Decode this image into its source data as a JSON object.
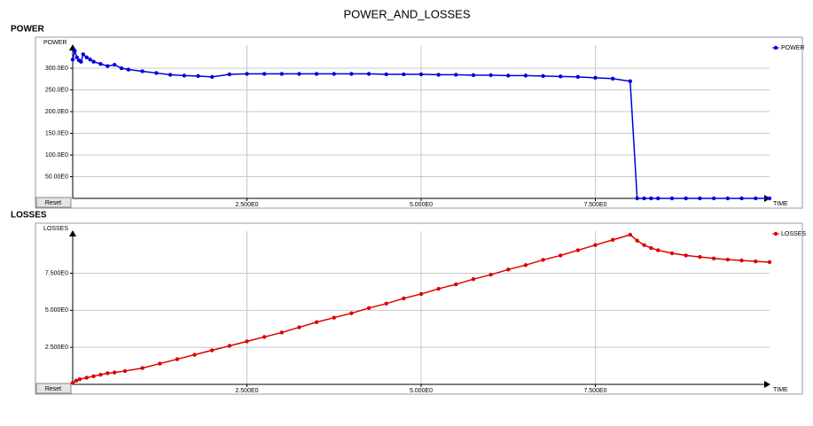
{
  "title": "POWER_AND_LOSSES",
  "chart_data": [
    {
      "type": "line",
      "panel_label": "POWER",
      "ylabel": "POWER",
      "xlabel": "TIME",
      "reset_button": "Reset",
      "x": [
        0,
        0.03,
        0.06,
        0.09,
        0.12,
        0.15,
        0.2,
        0.25,
        0.3,
        0.4,
        0.5,
        0.6,
        0.7,
        0.8,
        1.0,
        1.2,
        1.4,
        1.6,
        1.8,
        2.0,
        2.25,
        2.5,
        2.75,
        3.0,
        3.25,
        3.5,
        3.75,
        4.0,
        4.25,
        4.5,
        4.75,
        5.0,
        5.25,
        5.5,
        5.75,
        6.0,
        6.25,
        6.5,
        6.75,
        7.0,
        7.25,
        7.5,
        7.75,
        8.0,
        8.1,
        8.2,
        8.3,
        8.4,
        8.6,
        8.8,
        9.0,
        9.2,
        9.4,
        9.6,
        9.8,
        10.0
      ],
      "series": [
        {
          "name": "POWER",
          "color": "#0000dd",
          "values": [
            320,
            340,
            325,
            318,
            315,
            332,
            325,
            320,
            315,
            310,
            305,
            308,
            300,
            297,
            293,
            289,
            285,
            283,
            282,
            280,
            286,
            287,
            287,
            287,
            287,
            287,
            287,
            287,
            287,
            286,
            286,
            286,
            285,
            285,
            284,
            284,
            283,
            283,
            282,
            281,
            280,
            278,
            276,
            270,
            0,
            0,
            0,
            0,
            0,
            0,
            0,
            0,
            0,
            0,
            0,
            0
          ]
        }
      ],
      "xlim": [
        0,
        10
      ],
      "ylim": [
        0,
        345
      ],
      "xticks": [
        {
          "value": 2.5,
          "label": "2.500E0"
        },
        {
          "value": 5,
          "label": "5.000E0"
        },
        {
          "value": 7.5,
          "label": "7.500E0"
        }
      ],
      "yticks": [
        {
          "value": 50,
          "label": "50.00E0"
        },
        {
          "value": 100,
          "label": "100.0E0"
        },
        {
          "value": 150,
          "label": "150.0E0"
        },
        {
          "value": 200,
          "label": "200.0E0"
        },
        {
          "value": 250,
          "label": "250.0E0"
        },
        {
          "value": 300,
          "label": "300.0E0"
        }
      ],
      "grid": true,
      "legend": "top-right"
    },
    {
      "type": "line",
      "panel_label": "LOSSES",
      "ylabel": "LOSSES",
      "xlabel": "TIME",
      "reset_button": "Reset",
      "x": [
        0,
        0.05,
        0.1,
        0.2,
        0.3,
        0.4,
        0.5,
        0.6,
        0.75,
        1.0,
        1.25,
        1.5,
        1.75,
        2.0,
        2.25,
        2.5,
        2.75,
        3.0,
        3.25,
        3.5,
        3.75,
        4.0,
        4.25,
        4.5,
        4.75,
        5.0,
        5.25,
        5.5,
        5.75,
        6.0,
        6.25,
        6.5,
        6.75,
        7.0,
        7.25,
        7.5,
        7.75,
        8.0,
        8.1,
        8.2,
        8.3,
        8.4,
        8.6,
        8.8,
        9.0,
        9.2,
        9.4,
        9.6,
        9.8,
        10.0
      ],
      "series": [
        {
          "name": "LOSSES",
          "color": "#dd0000",
          "values": [
            0.1,
            0.25,
            0.35,
            0.45,
            0.55,
            0.65,
            0.75,
            0.8,
            0.9,
            1.1,
            1.4,
            1.7,
            2.0,
            2.3,
            2.6,
            2.9,
            3.2,
            3.5,
            3.85,
            4.2,
            4.5,
            4.8,
            5.15,
            5.45,
            5.8,
            6.1,
            6.45,
            6.75,
            7.1,
            7.4,
            7.75,
            8.05,
            8.4,
            8.7,
            9.05,
            9.4,
            9.75,
            10.1,
            9.7,
            9.4,
            9.2,
            9.05,
            8.85,
            8.7,
            8.6,
            8.5,
            8.42,
            8.36,
            8.3,
            8.25
          ]
        }
      ],
      "xlim": [
        0,
        10
      ],
      "ylim": [
        0,
        10.1
      ],
      "xticks": [
        {
          "value": 2.5,
          "label": "2.500E0"
        },
        {
          "value": 5,
          "label": "5.000E0"
        },
        {
          "value": 7.5,
          "label": "7.500E0"
        }
      ],
      "yticks": [
        {
          "value": 2.5,
          "label": "2.500E0"
        },
        {
          "value": 5,
          "label": "5.000E0"
        },
        {
          "value": 7.5,
          "label": "7.500E0"
        }
      ],
      "grid": true,
      "legend": "top-right"
    }
  ]
}
